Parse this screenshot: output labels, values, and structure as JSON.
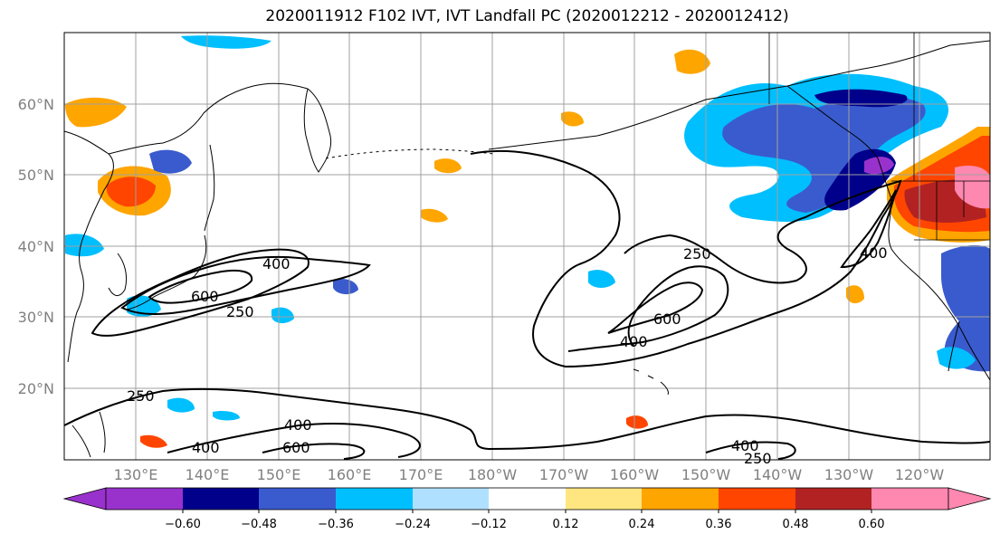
{
  "title": "2020011912 F102 IVT, IVT Landfall PC (2020012212 - 2020012412)",
  "lat_labels": [
    "60°N",
    "50°N",
    "40°N",
    "30°N",
    "20°N"
  ],
  "lon_labels": [
    "130°E",
    "140°E",
    "150°E",
    "160°E",
    "170°E",
    "180°W",
    "170°W",
    "160°W",
    "150°W",
    "140°W",
    "130°W",
    "120°W"
  ],
  "contour_labels": {
    "japan_400": "400",
    "japan_600": "600",
    "japan_250": "250",
    "pac_250": "250",
    "pac_600": "600",
    "pac_400": "400",
    "coast_400": "400",
    "south_250": "250",
    "south_400a": "400",
    "south_400b": "400",
    "south_600": "600",
    "se_400": "400",
    "se_250": "250"
  },
  "colorbar": {
    "ticks": [
      "−0.60",
      "−0.48",
      "−0.36",
      "−0.24",
      "−0.12",
      "0.12",
      "0.24",
      "0.36",
      "0.48",
      "0.60"
    ],
    "colors": [
      "#9932cc",
      "#00008b",
      "#3a5bcd",
      "#00bfff",
      "#b0e0ff",
      "#ffffff",
      "#ffe680",
      "#ffa500",
      "#ff4500",
      "#b22222",
      "#ff88b0",
      "#ff88b0"
    ],
    "under_color": "#9932cc",
    "over_color": "#ff88b0"
  },
  "colors": {
    "gridline": "#a0a0a0",
    "coast": "#000000",
    "contour": "#000000"
  }
}
